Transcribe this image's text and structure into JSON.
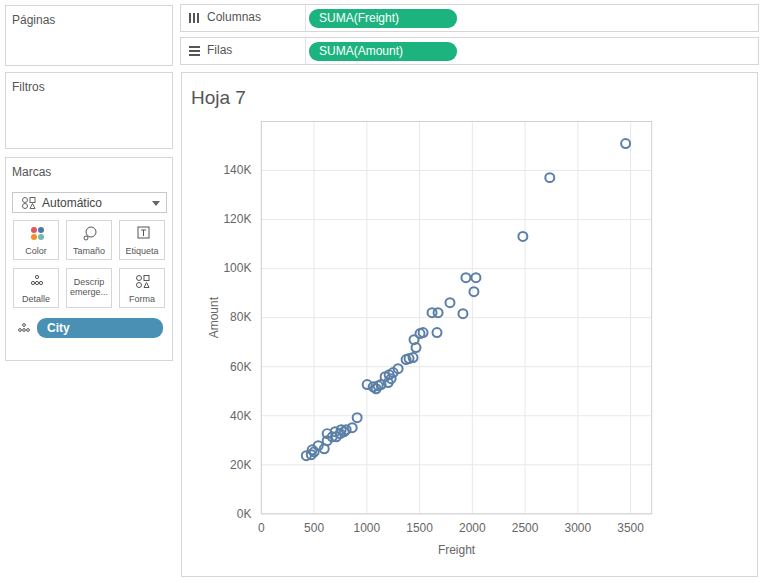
{
  "chart_data": {
    "type": "scatter",
    "title": "Hoja 7",
    "x_label": "Freight",
    "y_label": "Amount",
    "x": [
      426,
      473,
      501,
      482,
      539,
      596,
      624,
      624,
      672,
      700,
      747,
      710,
      757,
      804,
      785,
      861,
      908,
      1003,
      1060,
      1088,
      1107,
      1135,
      1173,
      1202,
      1211,
      1230,
      1249,
      1296,
      1372,
      1400,
      1438,
      1447,
      1466,
      1504,
      1533,
      1618,
      1675,
      1665,
      1788,
      1911,
      1939,
      2034,
      2015,
      2479,
      2734,
      3453
    ],
    "values": [
      23700,
      24100,
      25300,
      26100,
      27800,
      26500,
      29800,
      32700,
      31400,
      33500,
      32700,
      31400,
      34300,
      34300,
      33500,
      35100,
      39200,
      52700,
      51800,
      51000,
      52200,
      52700,
      55900,
      53500,
      56700,
      55100,
      57600,
      59200,
      62900,
      63300,
      63700,
      71000,
      67800,
      73500,
      73900,
      82000,
      82000,
      73900,
      86100,
      81600,
      96300,
      96300,
      90600,
      113100,
      137100,
      151000
    ],
    "color": "#5b7fa6",
    "marker": "circle",
    "xlim": [
      0,
      3700
    ],
    "xticks": [
      0,
      500,
      1000,
      1500,
      2000,
      2500,
      3000,
      3500
    ],
    "ylim": [
      0,
      160000
    ],
    "yticks": [
      {
        "value": 0,
        "label": "0K"
      },
      {
        "value": 20000,
        "label": "20K"
      },
      {
        "value": 40000,
        "label": "40K"
      },
      {
        "value": 60000,
        "label": "60K"
      },
      {
        "value": 80000,
        "label": "80K"
      },
      {
        "value": 100000,
        "label": "100K"
      },
      {
        "value": 120000,
        "label": "120K"
      },
      {
        "value": 140000,
        "label": "140K"
      }
    ],
    "grid": true
  },
  "interface": {
    "pages": "Páginas",
    "filters": "Filtros",
    "marks": "Marcas",
    "mark_type": "Automático",
    "mark_buttons": [
      "Color",
      "Tamaño",
      "Etiqueta",
      "Detalle",
      "Descrip emerge...",
      "Forma"
    ],
    "detail_pill": "City",
    "columns_label": "Columnas",
    "columns_pill": "SUMA(Freight)",
    "rows_label": "Filas",
    "rows_pill": "SUMA(Amount)"
  }
}
